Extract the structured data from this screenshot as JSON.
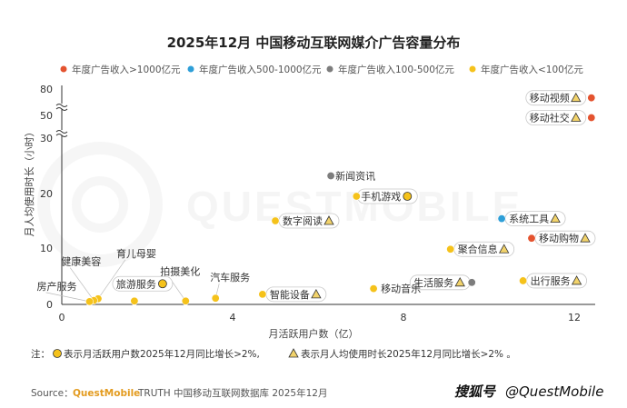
{
  "chart_data": {
    "type": "scatter",
    "title": "2025年12月 中国移动互联网媒介广告容量分布",
    "xlabel": "月活跃用户数（亿）",
    "ylabel": "月人均使用时长（小时）",
    "xlim": [
      0,
      12.6
    ],
    "x_ticks": [
      "0",
      "4",
      "8",
      "12"
    ],
    "y_ticks": [
      "0",
      "10",
      "20",
      "30",
      "50",
      "80"
    ],
    "y_axis_breaks": [
      30,
      50
    ],
    "legend_position": "top",
    "grid": false,
    "legend": [
      {
        "name": "年度广告收入>1000亿元",
        "color": "#e4532f"
      },
      {
        "name": "年度广告收入500-1000亿元",
        "color": "#2e9fd8"
      },
      {
        "name": "年度广告收入100-500亿元",
        "color": "#7d7d7d"
      },
      {
        "name": "年度广告收入<100亿元",
        "color": "#f5c21b"
      }
    ],
    "points": [
      {
        "label": "移动视频",
        "x": 12.4,
        "y": 70,
        "tier": 0,
        "circle": false,
        "triangle": true
      },
      {
        "label": "移动社交",
        "x": 12.4,
        "y": 48,
        "tier": 0,
        "circle": false,
        "triangle": true
      },
      {
        "label": "新闻资讯",
        "x": 6.3,
        "y": 23.2,
        "tier": 2,
        "circle": false,
        "triangle": false
      },
      {
        "label": "手机游戏",
        "x": 6.9,
        "y": 19.5,
        "tier": 3,
        "circle": true,
        "triangle": false
      },
      {
        "label": "数字阅读",
        "x": 5.0,
        "y": 15.0,
        "tier": 3,
        "circle": false,
        "triangle": true
      },
      {
        "label": "系统工具",
        "x": 10.3,
        "y": 15.4,
        "tier": 1,
        "circle": false,
        "triangle": true
      },
      {
        "label": "移动购物",
        "x": 11.0,
        "y": 11.8,
        "tier": 0,
        "circle": false,
        "triangle": true
      },
      {
        "label": "聚合信息",
        "x": 9.1,
        "y": 9.8,
        "tier": 3,
        "circle": false,
        "triangle": true
      },
      {
        "label": "生活服务",
        "x": 9.6,
        "y": 3.9,
        "tier": 2,
        "circle": false,
        "triangle": true
      },
      {
        "label": "出行服务",
        "x": 10.8,
        "y": 4.2,
        "tier": 3,
        "circle": false,
        "triangle": true
      },
      {
        "label": "移动音乐",
        "x": 7.3,
        "y": 2.8,
        "tier": 3,
        "circle": false,
        "triangle": false
      },
      {
        "label": "智能设备",
        "x": 4.7,
        "y": 1.8,
        "tier": 3,
        "circle": false,
        "triangle": true
      },
      {
        "label": "汽车服务",
        "x": 3.6,
        "y": 1.1,
        "tier": 3,
        "circle": false,
        "triangle": false
      },
      {
        "label": "拍摄美化",
        "x": 2.9,
        "y": 0.6,
        "tier": 3,
        "circle": false,
        "triangle": false
      },
      {
        "label": "旅游服务",
        "x": 1.7,
        "y": 0.6,
        "tier": 3,
        "circle": true,
        "triangle": false
      },
      {
        "label": "育儿母婴",
        "x": 0.85,
        "y": 1.0,
        "tier": 3,
        "circle": false,
        "triangle": false
      },
      {
        "label": "健康美容",
        "x": 0.75,
        "y": 0.7,
        "tier": 3,
        "circle": false,
        "triangle": false
      },
      {
        "label": "房产服务",
        "x": 0.65,
        "y": 0.5,
        "tier": 3,
        "circle": false,
        "triangle": false
      }
    ]
  },
  "footnote": {
    "prefix": "注：",
    "circle_text": "表示月活跃用户数2025年12月同比增长>2%,",
    "triangle_text": "表示月人均使用时长2025年12月同比增长>2% 。"
  },
  "source": {
    "prefix": "Source：",
    "brand": "QuestMobile",
    "text": "TRUTH 中国移动互联网数据库 2025年12月"
  },
  "watermark": {
    "text": "@QuestMobile",
    "logo": "搜狐号"
  },
  "background_mark": "QUESTMOBILE"
}
